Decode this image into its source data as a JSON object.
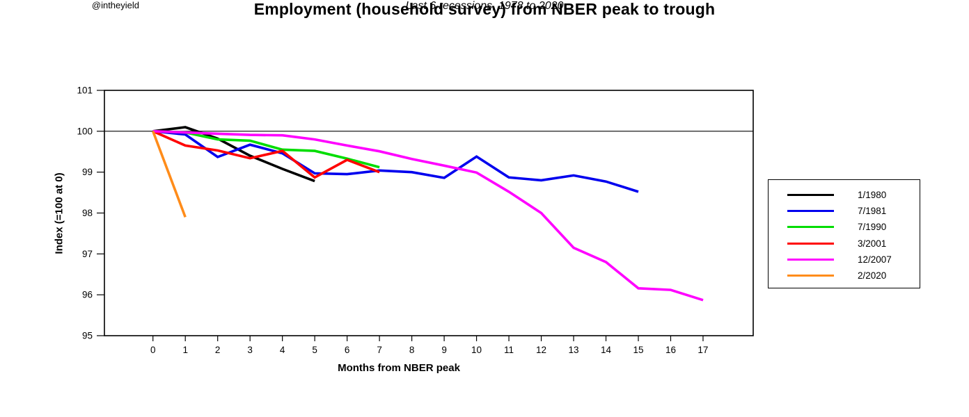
{
  "page": {
    "title": "Employment (household survey) from NBER peak to trough",
    "subtitle": "Last 6 recessions, 1978 to 2020",
    "watermark": "@intheyield"
  },
  "chart_data": {
    "type": "line",
    "title": "Employment (household survey) from NBER peak to trough",
    "subtitle": "Last 6 recessions, 1978 to 2020",
    "watermark": "@intheyield",
    "xlabel": "Months from NBER peak",
    "ylabel": "Index (=100 at 0)",
    "xlim": [
      -1.5,
      18.55
    ],
    "ylim": [
      95,
      101
    ],
    "x_ticks": [
      0,
      1,
      2,
      3,
      4,
      5,
      6,
      7,
      8,
      9,
      10,
      11,
      12,
      13,
      14,
      15,
      16,
      17
    ],
    "y_ticks": [
      95,
      96,
      97,
      98,
      99,
      100,
      101
    ],
    "reference_line_y": 100,
    "grid": false,
    "legend_position": "right-outside",
    "axis_color": "#000000",
    "line_width": 3.6,
    "series": [
      {
        "name": "1/1980",
        "color": "#000000",
        "x": [
          0,
          1,
          2,
          3,
          4,
          5
        ],
        "values": [
          100,
          100.1,
          99.82,
          99.4,
          99.08,
          98.78
        ]
      },
      {
        "name": "7/1981",
        "color": "#0000ee",
        "x": [
          0,
          1,
          2,
          3,
          4,
          5,
          6,
          7,
          8,
          9,
          10,
          11,
          12,
          13,
          14,
          15
        ],
        "values": [
          100,
          99.92,
          99.37,
          99.67,
          99.46,
          98.97,
          98.95,
          99.04,
          99.0,
          98.86,
          99.38,
          98.87,
          98.8,
          98.92,
          98.77,
          98.52
        ]
      },
      {
        "name": "7/1990",
        "color": "#00dd00",
        "x": [
          0,
          1,
          2,
          3,
          4,
          5,
          6,
          7
        ],
        "values": [
          100,
          99.97,
          99.8,
          99.77,
          99.55,
          99.52,
          99.33,
          99.12
        ]
      },
      {
        "name": "3/2001",
        "color": "#ff0000",
        "x": [
          0,
          1,
          2,
          3,
          4,
          5,
          6,
          7
        ],
        "values": [
          100,
          99.65,
          99.53,
          99.34,
          99.52,
          98.87,
          99.3,
          99.0
        ]
      },
      {
        "name": "12/2007",
        "color": "#ff00ff",
        "x": [
          0,
          1,
          2,
          3,
          4,
          5,
          6,
          7,
          8,
          9,
          10,
          11,
          12,
          13,
          14,
          15,
          16,
          17
        ],
        "values": [
          100,
          99.97,
          99.94,
          99.91,
          99.9,
          99.8,
          99.65,
          99.51,
          99.32,
          99.16,
          98.99,
          98.52,
          98.0,
          97.15,
          96.8,
          96.16,
          96.12,
          95.87
        ]
      },
      {
        "name": "2/2020",
        "color": "#ff8c1a",
        "x": [
          0,
          1
        ],
        "values": [
          100,
          97.9
        ]
      }
    ]
  }
}
